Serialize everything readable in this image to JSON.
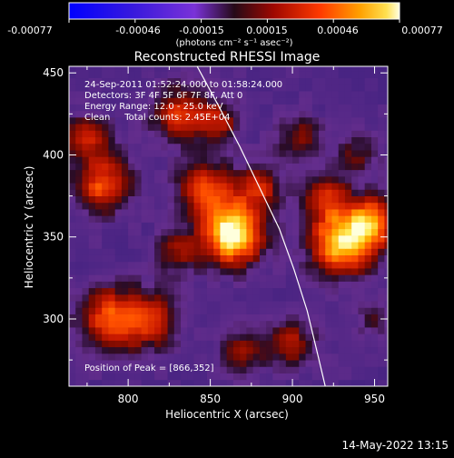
{
  "colorbar": {
    "tick_labels": [
      "-0.00077",
      "-0.00046",
      "-0.00015",
      "0.00015",
      "0.00046",
      "0.00077"
    ],
    "units_label": "(photons cm⁻² s⁻¹ asec⁻²)",
    "range": [
      -0.00077,
      0.00077
    ]
  },
  "plot": {
    "title": "Reconstructed RHESSI Image",
    "xlabel": "Heliocentric X (arcsec)",
    "ylabel": "Heliocentric Y (arcsec)",
    "x_ticks": [
      "800",
      "850",
      "900",
      "950"
    ],
    "y_ticks": [
      "300",
      "350",
      "400",
      "450"
    ],
    "xlim": [
      764,
      958
    ],
    "ylim": [
      259,
      454
    ],
    "info_lines": [
      "24-Sep-2011 01:52:24.000 to 01:58:24.000",
      "Detectors: 3F 4F 5F 6F 7F 8F, Att 0",
      "Energy Range: 12.0 - 25.0 keV",
      "Clean     Total counts: 2.45E+04"
    ],
    "peak_label": "Position of Peak = [866,352]"
  },
  "footer": {
    "timestamp": "14-May-2022 13:15"
  },
  "chart_data": {
    "type": "heatmap",
    "title": "Reconstructed RHESSI Image",
    "xlabel": "Heliocentric X (arcsec)",
    "ylabel": "Heliocentric Y (arcsec)",
    "xlim": [
      764,
      958
    ],
    "ylim": [
      259,
      454
    ],
    "x_ticks": [
      800,
      850,
      900,
      950
    ],
    "y_ticks": [
      300,
      350,
      400,
      450
    ],
    "colorbar_range": [
      -0.00077,
      0.00077
    ],
    "peak": [
      866,
      352
    ],
    "limb_curve": [
      [
        842,
        454
      ],
      [
        855,
        430
      ],
      [
        868,
        405
      ],
      [
        880,
        380
      ],
      [
        892,
        355
      ],
      [
        901,
        330
      ],
      [
        909,
        305
      ],
      [
        915,
        280
      ],
      [
        920,
        259
      ]
    ],
    "sources": [
      {
        "x": 864,
        "y": 352,
        "intensity": 1.0,
        "radius": 13
      },
      {
        "x": 847,
        "y": 380,
        "intensity": 0.55,
        "radius": 12
      },
      {
        "x": 880,
        "y": 380,
        "intensity": 0.45,
        "radius": 10
      },
      {
        "x": 930,
        "y": 347,
        "intensity": 0.85,
        "radius": 14
      },
      {
        "x": 950,
        "y": 360,
        "intensity": 0.6,
        "radius": 11
      },
      {
        "x": 920,
        "y": 375,
        "intensity": 0.45,
        "radius": 10
      },
      {
        "x": 785,
        "y": 382,
        "intensity": 0.6,
        "radius": 12
      },
      {
        "x": 775,
        "y": 410,
        "intensity": 0.45,
        "radius": 10
      },
      {
        "x": 790,
        "y": 300,
        "intensity": 0.6,
        "radius": 14
      },
      {
        "x": 815,
        "y": 300,
        "intensity": 0.45,
        "radius": 12
      },
      {
        "x": 830,
        "y": 425,
        "intensity": 0.5,
        "radius": 12
      },
      {
        "x": 855,
        "y": 420,
        "intensity": 0.4,
        "radius": 10
      },
      {
        "x": 905,
        "y": 410,
        "intensity": 0.35,
        "radius": 10
      },
      {
        "x": 940,
        "y": 400,
        "intensity": 0.3,
        "radius": 9
      },
      {
        "x": 900,
        "y": 285,
        "intensity": 0.4,
        "radius": 10
      },
      {
        "x": 870,
        "y": 280,
        "intensity": 0.35,
        "radius": 10
      },
      {
        "x": 950,
        "y": 300,
        "intensity": 0.25,
        "radius": 8
      },
      {
        "x": 830,
        "y": 340,
        "intensity": 0.35,
        "radius": 10
      }
    ]
  }
}
